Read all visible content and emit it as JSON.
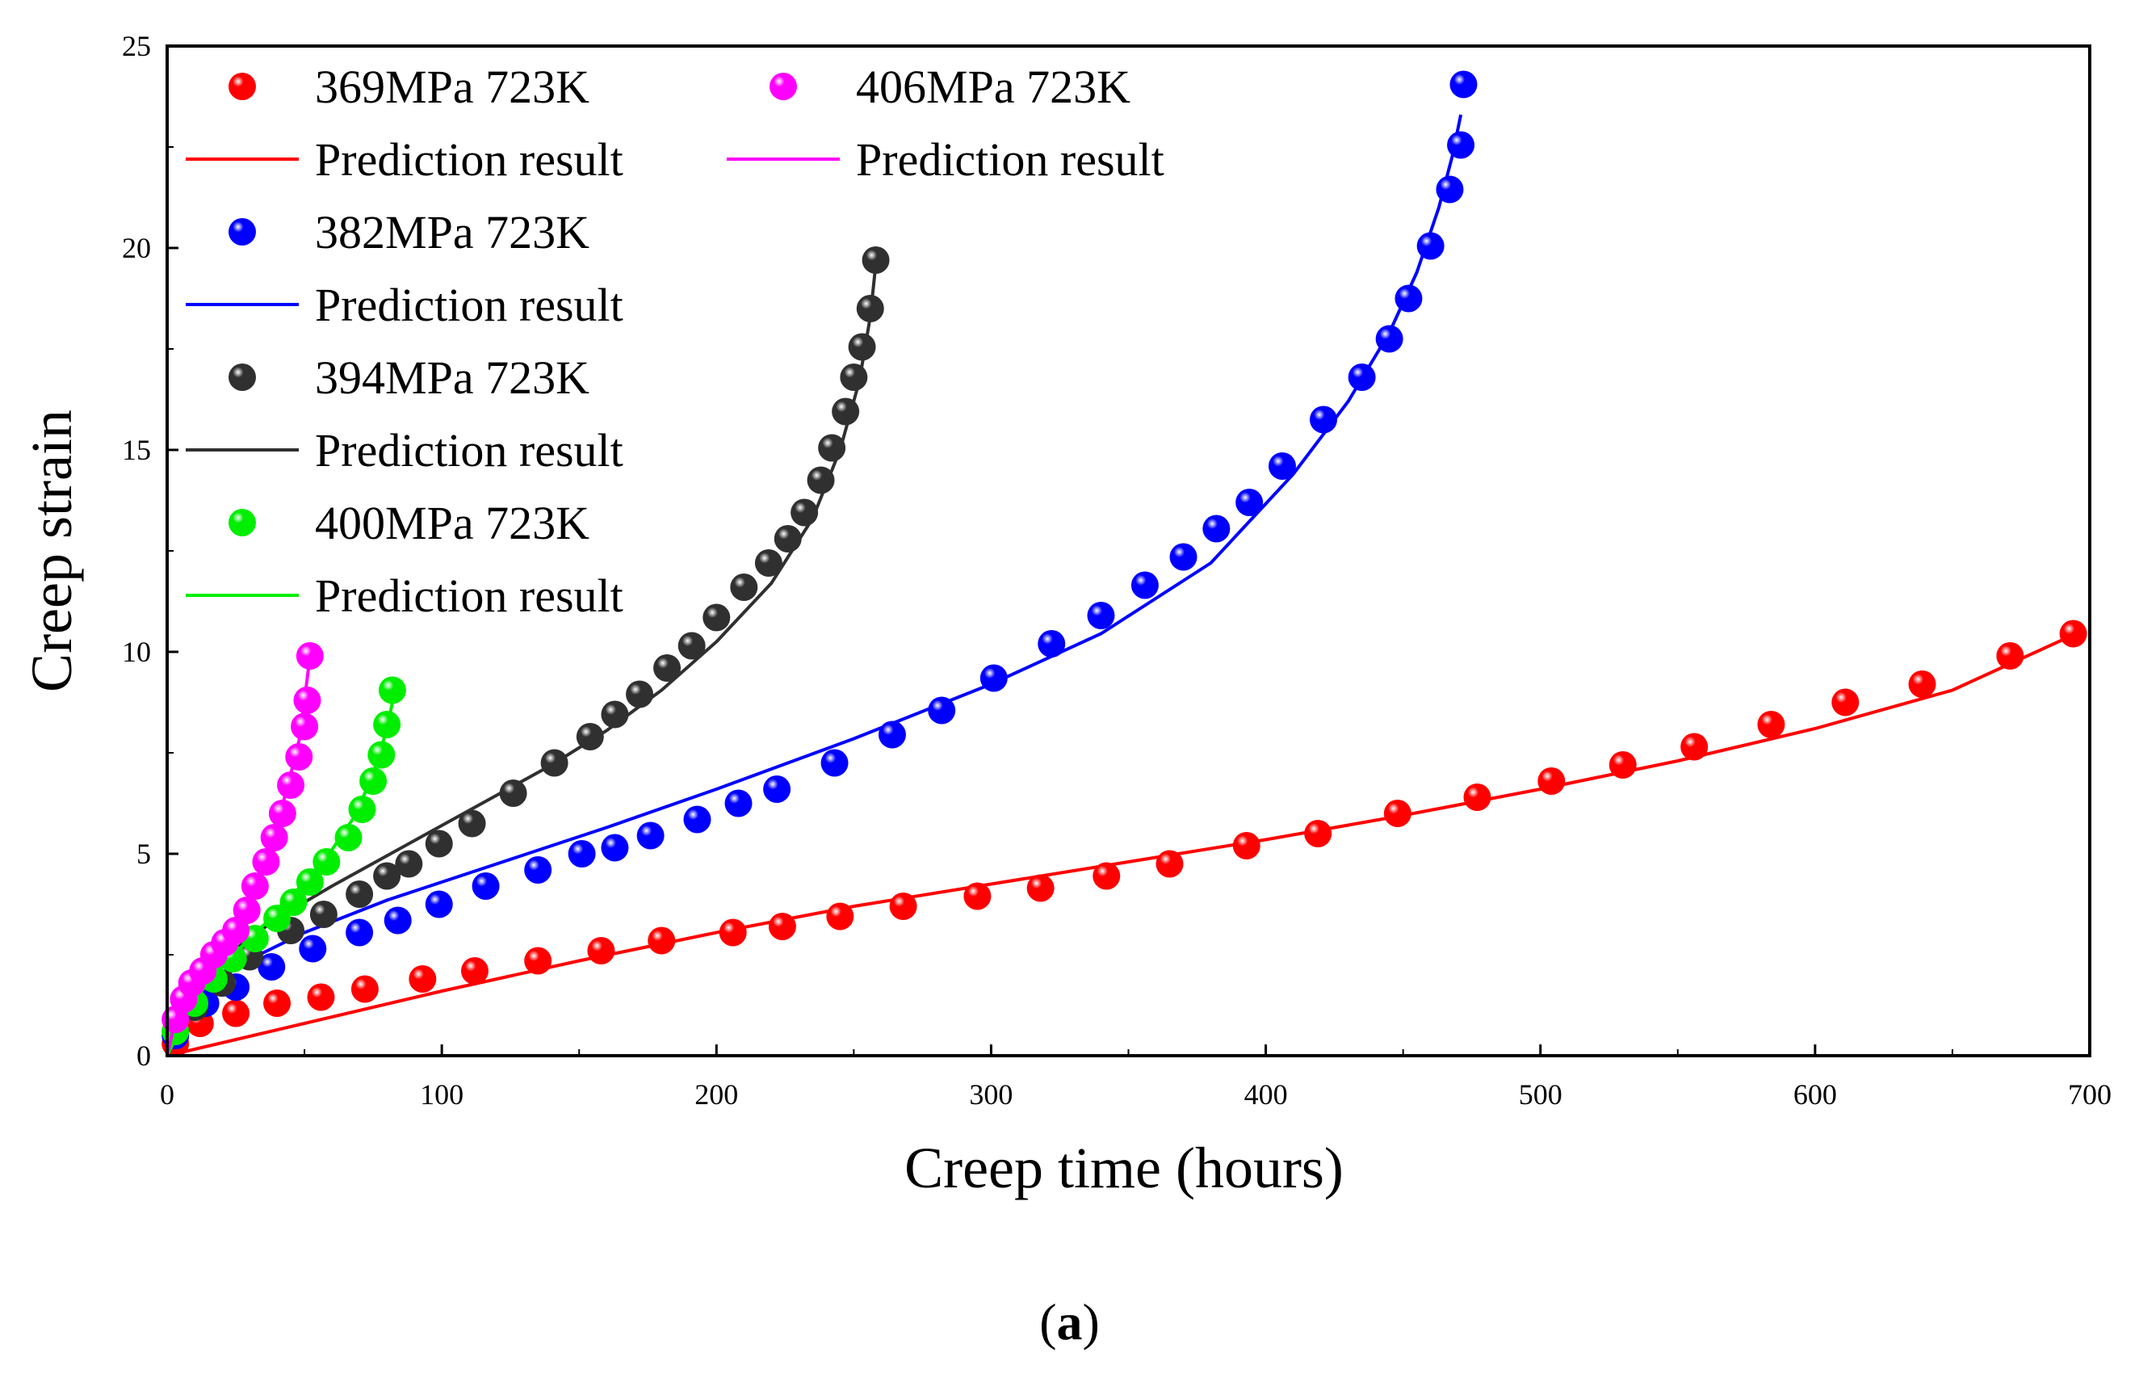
{
  "chart_data": {
    "type": "scatter",
    "title": "",
    "xlabel": "Creep time (hours)",
    "ylabel": "Creep strain",
    "xlim": [
      0,
      700
    ],
    "ylim": [
      0,
      25
    ],
    "xticks": [
      0,
      100,
      200,
      300,
      400,
      500,
      600,
      700
    ],
    "yticks": [
      0,
      5,
      10,
      15,
      20,
      25
    ],
    "grid": false,
    "legend_position": "top-left",
    "series": [
      {
        "name": "369MPa 723K",
        "prediction_label": "Prediction result",
        "color": "#ff0000",
        "points": [
          [
            3,
            0.3
          ],
          [
            12,
            0.8
          ],
          [
            25,
            1.05
          ],
          [
            40,
            1.3
          ],
          [
            56,
            1.45
          ],
          [
            72,
            1.65
          ],
          [
            93,
            1.9
          ],
          [
            112,
            2.1
          ],
          [
            135,
            2.35
          ],
          [
            158,
            2.6
          ],
          [
            180,
            2.85
          ],
          [
            206,
            3.05
          ],
          [
            224,
            3.2
          ],
          [
            245,
            3.45
          ],
          [
            268,
            3.7
          ],
          [
            295,
            3.95
          ],
          [
            318,
            4.15
          ],
          [
            342,
            4.45
          ],
          [
            365,
            4.75
          ],
          [
            393,
            5.2
          ],
          [
            419,
            5.5
          ],
          [
            448,
            6.0
          ],
          [
            477,
            6.4
          ],
          [
            504,
            6.8
          ],
          [
            530,
            7.2
          ],
          [
            556,
            7.65
          ],
          [
            584,
            8.2
          ],
          [
            611,
            8.75
          ],
          [
            639,
            9.2
          ],
          [
            671,
            9.9
          ],
          [
            694,
            10.45
          ]
        ],
        "prediction": [
          [
            0,
            0
          ],
          [
            50,
            0.8
          ],
          [
            100,
            1.6
          ],
          [
            150,
            2.35
          ],
          [
            200,
            3.05
          ],
          [
            250,
            3.7
          ],
          [
            300,
            4.25
          ],
          [
            350,
            4.8
          ],
          [
            400,
            5.35
          ],
          [
            450,
            5.95
          ],
          [
            500,
            6.6
          ],
          [
            550,
            7.3
          ],
          [
            600,
            8.1
          ],
          [
            650,
            9.05
          ],
          [
            695,
            10.45
          ]
        ]
      },
      {
        "name": "382MPa 723K",
        "prediction_label": "Prediction result",
        "color": "#0000ff",
        "points": [
          [
            3,
            0.5
          ],
          [
            14,
            1.3
          ],
          [
            25,
            1.7
          ],
          [
            38,
            2.2
          ],
          [
            53,
            2.65
          ],
          [
            70,
            3.05
          ],
          [
            84,
            3.35
          ],
          [
            99,
            3.75
          ],
          [
            116,
            4.2
          ],
          [
            135,
            4.6
          ],
          [
            151,
            5.0
          ],
          [
            163,
            5.15
          ],
          [
            176,
            5.45
          ],
          [
            193,
            5.85
          ],
          [
            208,
            6.25
          ],
          [
            222,
            6.6
          ],
          [
            243,
            7.25
          ],
          [
            264,
            7.95
          ],
          [
            282,
            8.55
          ],
          [
            301,
            9.35
          ],
          [
            322,
            10.2
          ],
          [
            340,
            10.9
          ],
          [
            356,
            11.65
          ],
          [
            370,
            12.35
          ],
          [
            382,
            13.05
          ],
          [
            394,
            13.7
          ],
          [
            406,
            14.6
          ],
          [
            421,
            15.75
          ],
          [
            435,
            16.8
          ],
          [
            445,
            17.75
          ],
          [
            452,
            18.75
          ],
          [
            460,
            20.05
          ],
          [
            467,
            21.45
          ],
          [
            471,
            22.55
          ],
          [
            472,
            24.05
          ]
        ],
        "prediction": [
          [
            0,
            0
          ],
          [
            10,
            1.3
          ],
          [
            20,
            1.95
          ],
          [
            35,
            2.55
          ],
          [
            50,
            3.05
          ],
          [
            80,
            3.85
          ],
          [
            120,
            4.75
          ],
          [
            160,
            5.65
          ],
          [
            200,
            6.6
          ],
          [
            250,
            7.85
          ],
          [
            300,
            9.2
          ],
          [
            340,
            10.45
          ],
          [
            380,
            12.2
          ],
          [
            410,
            14.4
          ],
          [
            430,
            16.2
          ],
          [
            445,
            17.9
          ],
          [
            455,
            19.4
          ],
          [
            463,
            21.0
          ],
          [
            468,
            22.3
          ],
          [
            471,
            23.3
          ]
        ]
      },
      {
        "name": "394MPa 723K",
        "prediction_label": "Prediction result",
        "color": "#303030",
        "points": [
          [
            3,
            0.6
          ],
          [
            10,
            1.2
          ],
          [
            20,
            1.8
          ],
          [
            30,
            2.45
          ],
          [
            45,
            3.1
          ],
          [
            57,
            3.5
          ],
          [
            70,
            4.0
          ],
          [
            80,
            4.45
          ],
          [
            88,
            4.75
          ],
          [
            99,
            5.25
          ],
          [
            111,
            5.75
          ],
          [
            126,
            6.5
          ],
          [
            141,
            7.25
          ],
          [
            154,
            7.9
          ],
          [
            163,
            8.45
          ],
          [
            172,
            8.95
          ],
          [
            182,
            9.6
          ],
          [
            191,
            10.15
          ],
          [
            200,
            10.85
          ],
          [
            210,
            11.6
          ],
          [
            219,
            12.2
          ],
          [
            226,
            12.8
          ],
          [
            232,
            13.45
          ],
          [
            238,
            14.25
          ],
          [
            242,
            15.05
          ],
          [
            247,
            15.95
          ],
          [
            250,
            16.8
          ],
          [
            253,
            17.55
          ],
          [
            256,
            18.5
          ],
          [
            258,
            19.7
          ]
        ],
        "prediction": [
          [
            0,
            0
          ],
          [
            8,
            1.4
          ],
          [
            20,
            2.4
          ],
          [
            40,
            3.4
          ],
          [
            60,
            4.2
          ],
          [
            80,
            4.95
          ],
          [
            100,
            5.7
          ],
          [
            120,
            6.45
          ],
          [
            140,
            7.2
          ],
          [
            160,
            8.05
          ],
          [
            180,
            9.05
          ],
          [
            200,
            10.25
          ],
          [
            220,
            11.7
          ],
          [
            235,
            13.3
          ],
          [
            245,
            15.0
          ],
          [
            252,
            16.7
          ],
          [
            256,
            18.3
          ],
          [
            258,
            19.6
          ]
        ]
      },
      {
        "name": "400MPa 723K",
        "prediction_label": "Prediction result",
        "color": "#00ee00",
        "points": [
          [
            3,
            0.6
          ],
          [
            10,
            1.3
          ],
          [
            17,
            1.9
          ],
          [
            24,
            2.4
          ],
          [
            32,
            2.9
          ],
          [
            40,
            3.4
          ],
          [
            46,
            3.8
          ],
          [
            52,
            4.3
          ],
          [
            58,
            4.8
          ],
          [
            66,
            5.4
          ],
          [
            71,
            6.1
          ],
          [
            75,
            6.8
          ],
          [
            78,
            7.45
          ],
          [
            80,
            8.2
          ],
          [
            82,
            9.05
          ]
        ],
        "prediction": [
          [
            0,
            0
          ],
          [
            10,
            1.4
          ],
          [
            20,
            2.2
          ],
          [
            30,
            2.9
          ],
          [
            40,
            3.55
          ],
          [
            50,
            4.3
          ],
          [
            60,
            5.1
          ],
          [
            68,
            5.9
          ],
          [
            74,
            6.8
          ],
          [
            78,
            7.6
          ],
          [
            81,
            8.4
          ],
          [
            83,
            9.1
          ]
        ]
      },
      {
        "name": "406MPa 723K",
        "prediction_label": "Prediction result",
        "color": "#ff00ff",
        "points": [
          [
            3,
            0.9
          ],
          [
            6,
            1.4
          ],
          [
            9,
            1.8
          ],
          [
            13,
            2.1
          ],
          [
            17,
            2.5
          ],
          [
            21,
            2.8
          ],
          [
            25,
            3.1
          ],
          [
            29,
            3.6
          ],
          [
            32,
            4.2
          ],
          [
            36,
            4.8
          ],
          [
            39,
            5.4
          ],
          [
            42,
            6.0
          ],
          [
            45,
            6.7
          ],
          [
            48,
            7.4
          ],
          [
            50,
            8.15
          ],
          [
            51,
            8.8
          ],
          [
            52,
            9.9
          ]
        ],
        "prediction": [
          [
            0,
            0
          ],
          [
            4,
            1.2
          ],
          [
            10,
            1.9
          ],
          [
            18,
            2.6
          ],
          [
            26,
            3.4
          ],
          [
            33,
            4.4
          ],
          [
            39,
            5.5
          ],
          [
            44,
            6.7
          ],
          [
            48,
            7.8
          ],
          [
            50,
            8.8
          ],
          [
            52,
            9.9
          ]
        ]
      }
    ]
  },
  "caption": {
    "open": "(",
    "letter": "a",
    "close": ")"
  }
}
